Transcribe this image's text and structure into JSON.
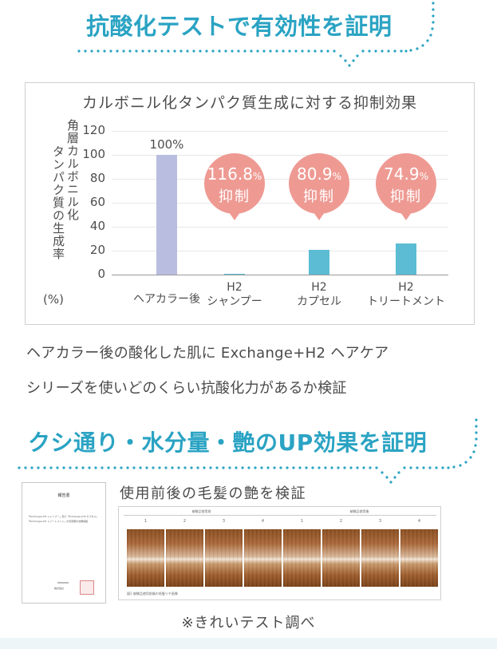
{
  "heading1": "抗酸化テストで有効性を証明",
  "chart_data": {
    "type": "bar",
    "title": "カルボニル化タンパク質生成に対する抑制効果",
    "ylabel_line1": "角層カルボニル化",
    "ylabel_line2": "タンパク質の生成率",
    "yunit": "(%)",
    "ylim": [
      0,
      120
    ],
    "yticks": [
      "120",
      "100",
      "80",
      "60",
      "40",
      "20",
      "0"
    ],
    "categories": [
      [
        "ヘアカラー後"
      ],
      [
        "H2",
        "シャンプー"
      ],
      [
        "H2",
        "カプセル"
      ],
      [
        "H2",
        "トリートメント"
      ]
    ],
    "values": [
      100,
      1,
      21,
      26
    ],
    "value_label": "100%",
    "colors": [
      "#b9bee0",
      "#5bbcd4",
      "#5bbcd4",
      "#5bbcd4"
    ],
    "grid": true,
    "annotations": [
      {
        "value": "116.8",
        "unit": "%",
        "text": "抑制"
      },
      {
        "value": "80.9",
        "unit": "%",
        "text": "抑制"
      },
      {
        "value": "74.9",
        "unit": "%",
        "text": "抑制"
      }
    ]
  },
  "paragraph": {
    "line1": "ヘアカラー後の酸化した肌に Exchange+H2 ヘアケア",
    "line2": "シリーズを使いどのくらい抗酸化力があるか検証"
  },
  "heading2": "クシ通り・水分量・艶のUP効果を証明",
  "photo_title": "使用前後の毛髪の艶を検証",
  "photo_panel": {
    "header_left": "被験品使用前",
    "header_right": "被験品使用後",
    "numbers": [
      "1",
      "2",
      "3",
      "4",
      "1",
      "2",
      "3",
      "4"
    ],
    "footer": "図1 被験品使用前後の毛髪ツヤ画像"
  },
  "doc_thumb": {
    "title": "報告書",
    "line1": "「Exchange+H2 シャンプー」及び「Exchange+H2 カプセル」",
    "line2": "「Exchange+H2 トリートメント」の毛髪艶の効果検証",
    "org": "株式会社"
  },
  "caption": "※きれいテスト調べ",
  "accent_color": "#2aa3c3",
  "bubble_color": "#ee9a93"
}
